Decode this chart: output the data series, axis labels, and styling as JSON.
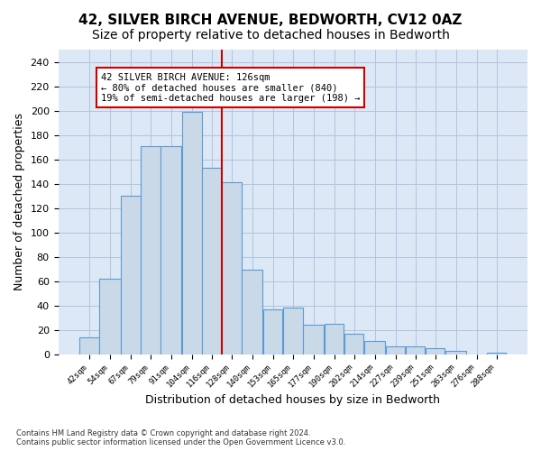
{
  "title": "42, SILVER BIRCH AVENUE, BEDWORTH, CV12 0AZ",
  "subtitle": "Size of property relative to detached houses in Bedworth",
  "xlabel": "Distribution of detached houses by size in Bedworth",
  "ylabel": "Number of detached properties",
  "bin_labels": [
    "42sqm",
    "54sqm",
    "67sqm",
    "79sqm",
    "91sqm",
    "104sqm",
    "116sqm",
    "128sqm",
    "140sqm",
    "153sqm",
    "165sqm",
    "177sqm",
    "190sqm",
    "202sqm",
    "214sqm",
    "227sqm",
    "239sqm",
    "251sqm",
    "263sqm",
    "276sqm",
    "288sqm"
  ],
  "bar_values": [
    14,
    62,
    130,
    171,
    171,
    199,
    153,
    141,
    69,
    37,
    38,
    24,
    25,
    17,
    11,
    6,
    6,
    5,
    3,
    0,
    1
  ],
  "bar_left_edges": [
    42,
    54,
    67,
    79,
    91,
    104,
    116,
    128,
    140,
    153,
    165,
    177,
    190,
    202,
    214,
    227,
    239,
    251,
    263,
    276,
    288
  ],
  "bar_widths": [
    12,
    13,
    12,
    12,
    13,
    12,
    12,
    12,
    13,
    12,
    12,
    13,
    12,
    12,
    13,
    12,
    12,
    12,
    13,
    12,
    12
  ],
  "vline_x": 128,
  "bar_facecolor": "#c9d9e8",
  "bar_edgecolor": "#5b9bd5",
  "vline_color": "#cc0000",
  "annotation_box_color": "#cc0000",
  "annotation_line1": "42 SILVER BIRCH AVENUE: 126sqm",
  "annotation_line2": "← 80% of detached houses are smaller (840)",
  "annotation_line3": "19% of semi-detached houses are larger (198) →",
  "ylim": [
    0,
    250
  ],
  "yticks": [
    0,
    20,
    40,
    60,
    80,
    100,
    120,
    140,
    160,
    180,
    200,
    220,
    240
  ],
  "grid_color": "#b0c4de",
  "background_color": "#dce8f5",
  "footnote": "Contains HM Land Registry data © Crown copyright and database right 2024.\nContains public sector information licensed under the Open Government Licence v3.0.",
  "title_fontsize": 11,
  "subtitle_fontsize": 10,
  "xlabel_fontsize": 9,
  "ylabel_fontsize": 9
}
